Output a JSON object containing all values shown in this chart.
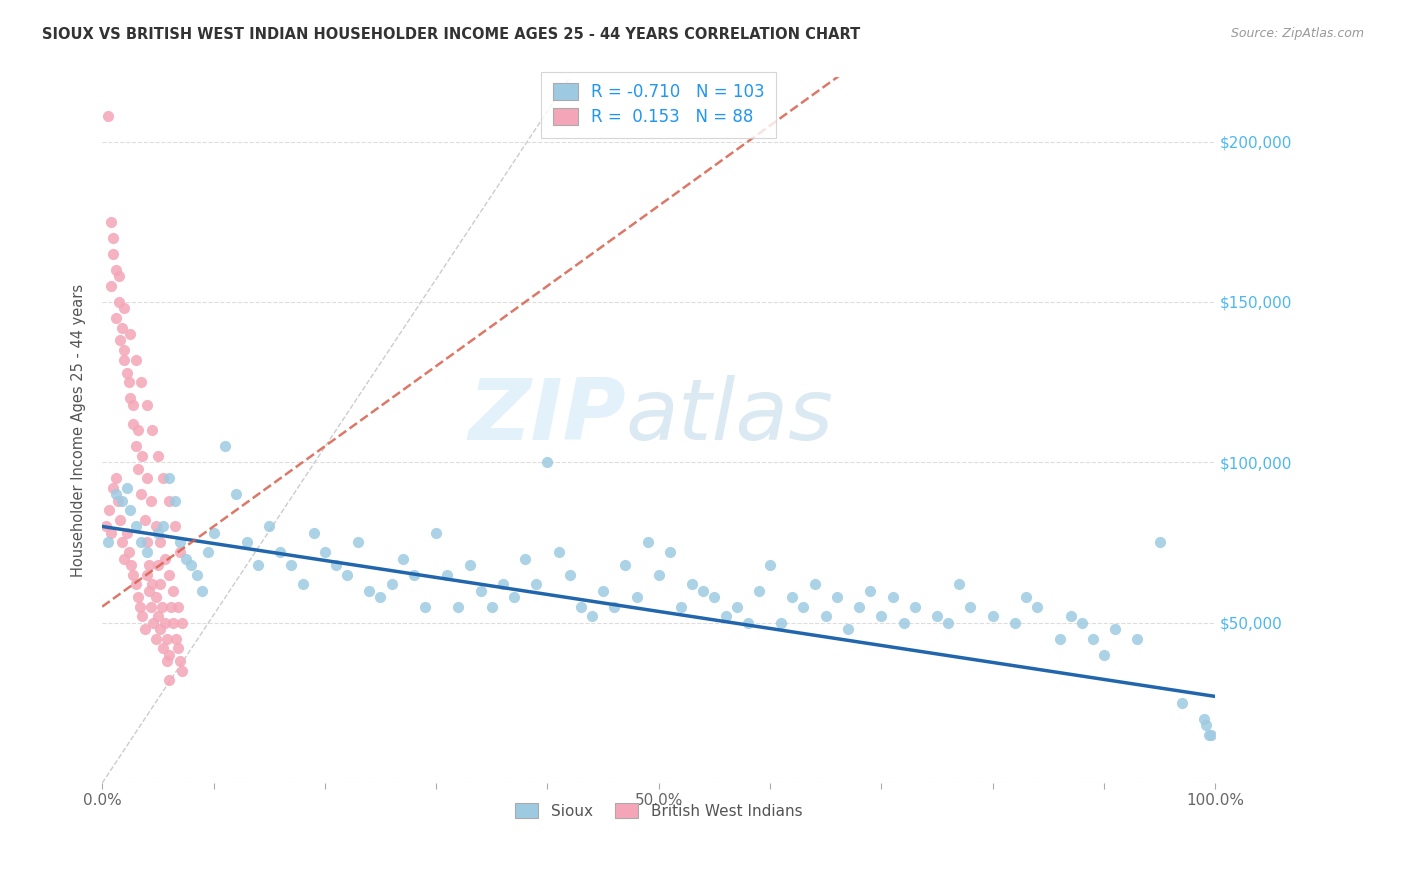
{
  "title": "SIOUX VS BRITISH WEST INDIAN HOUSEHOLDER INCOME AGES 25 - 44 YEARS CORRELATION CHART",
  "source": "Source: ZipAtlas.com",
  "ylabel": "Householder Income Ages 25 - 44 years",
  "xlim": [
    0.0,
    1.0
  ],
  "ylim": [
    0,
    220000
  ],
  "yticks": [
    0,
    50000,
    100000,
    150000,
    200000
  ],
  "ytick_labels": [
    "",
    "$50,000",
    "$100,000",
    "$150,000",
    "$200,000"
  ],
  "xtick_positions": [
    0.0,
    0.1,
    0.2,
    0.3,
    0.4,
    0.5,
    0.6,
    0.7,
    0.8,
    0.9,
    1.0
  ],
  "xtick_labels": [
    "0.0%",
    "",
    "",
    "",
    "",
    "50.0%",
    "",
    "",
    "",
    "",
    "100.0%"
  ],
  "sioux_color": "#9ecae1",
  "bwi_color": "#f4a6b8",
  "sioux_R": -0.71,
  "sioux_N": 103,
  "bwi_R": 0.153,
  "bwi_N": 88,
  "trend_sioux_color": "#2166ac",
  "trend_bwi_color": "#d6604d",
  "watermark_zip": "ZIP",
  "watermark_atlas": "atlas",
  "background_color": "#ffffff",
  "sioux_trend_x0": 0.0,
  "sioux_trend_y0": 80000,
  "sioux_trend_x1": 1.0,
  "sioux_trend_y1": 27000,
  "bwi_trend_x0": 0.0,
  "bwi_trend_y0": 55000,
  "bwi_trend_x1": 0.12,
  "bwi_trend_y1": 85000,
  "sioux_x": [
    0.005,
    0.012,
    0.018,
    0.022,
    0.025,
    0.03,
    0.035,
    0.04,
    0.05,
    0.055,
    0.06,
    0.065,
    0.07,
    0.075,
    0.08,
    0.085,
    0.09,
    0.095,
    0.1,
    0.11,
    0.12,
    0.13,
    0.14,
    0.15,
    0.16,
    0.17,
    0.18,
    0.19,
    0.2,
    0.21,
    0.22,
    0.23,
    0.24,
    0.25,
    0.26,
    0.27,
    0.28,
    0.29,
    0.3,
    0.31,
    0.32,
    0.33,
    0.34,
    0.35,
    0.36,
    0.37,
    0.38,
    0.39,
    0.4,
    0.41,
    0.42,
    0.43,
    0.44,
    0.45,
    0.46,
    0.47,
    0.48,
    0.49,
    0.5,
    0.51,
    0.52,
    0.53,
    0.54,
    0.55,
    0.56,
    0.57,
    0.58,
    0.59,
    0.6,
    0.61,
    0.62,
    0.63,
    0.64,
    0.65,
    0.66,
    0.67,
    0.68,
    0.69,
    0.7,
    0.71,
    0.72,
    0.73,
    0.75,
    0.76,
    0.77,
    0.78,
    0.8,
    0.82,
    0.83,
    0.84,
    0.86,
    0.87,
    0.88,
    0.89,
    0.9,
    0.91,
    0.93,
    0.95,
    0.97,
    0.99,
    0.992,
    0.994,
    0.996
  ],
  "sioux_y": [
    75000,
    90000,
    88000,
    92000,
    85000,
    80000,
    75000,
    72000,
    78000,
    80000,
    95000,
    88000,
    75000,
    70000,
    68000,
    65000,
    60000,
    72000,
    78000,
    105000,
    90000,
    75000,
    68000,
    80000,
    72000,
    68000,
    62000,
    78000,
    72000,
    68000,
    65000,
    75000,
    60000,
    58000,
    62000,
    70000,
    65000,
    55000,
    78000,
    65000,
    55000,
    68000,
    60000,
    55000,
    62000,
    58000,
    70000,
    62000,
    100000,
    72000,
    65000,
    55000,
    52000,
    60000,
    55000,
    68000,
    58000,
    75000,
    65000,
    72000,
    55000,
    62000,
    60000,
    58000,
    52000,
    55000,
    50000,
    60000,
    68000,
    50000,
    58000,
    55000,
    62000,
    52000,
    58000,
    48000,
    55000,
    60000,
    52000,
    58000,
    50000,
    55000,
    52000,
    50000,
    62000,
    55000,
    52000,
    50000,
    58000,
    55000,
    45000,
    52000,
    50000,
    45000,
    40000,
    48000,
    45000,
    75000,
    25000,
    20000,
    18000,
    15000,
    15000
  ],
  "bwi_x": [
    0.003,
    0.006,
    0.008,
    0.01,
    0.012,
    0.014,
    0.016,
    0.018,
    0.02,
    0.022,
    0.024,
    0.026,
    0.028,
    0.03,
    0.032,
    0.034,
    0.036,
    0.038,
    0.04,
    0.042,
    0.044,
    0.046,
    0.048,
    0.05,
    0.052,
    0.054,
    0.056,
    0.058,
    0.06,
    0.062,
    0.064,
    0.066,
    0.068,
    0.07,
    0.072,
    0.008,
    0.012,
    0.016,
    0.02,
    0.024,
    0.028,
    0.032,
    0.036,
    0.04,
    0.044,
    0.048,
    0.052,
    0.056,
    0.06,
    0.064,
    0.068,
    0.072,
    0.01,
    0.015,
    0.02,
    0.025,
    0.03,
    0.035,
    0.04,
    0.045,
    0.05,
    0.055,
    0.06,
    0.065,
    0.07,
    0.005,
    0.008,
    0.01,
    0.012,
    0.015,
    0.018,
    0.02,
    0.022,
    0.025,
    0.028,
    0.03,
    0.032,
    0.035,
    0.038,
    0.04,
    0.042,
    0.045,
    0.048,
    0.05,
    0.052,
    0.055,
    0.058,
    0.06
  ],
  "bwi_y": [
    80000,
    85000,
    78000,
    92000,
    95000,
    88000,
    82000,
    75000,
    70000,
    78000,
    72000,
    68000,
    65000,
    62000,
    58000,
    55000,
    52000,
    48000,
    65000,
    60000,
    55000,
    50000,
    45000,
    68000,
    62000,
    55000,
    50000,
    45000,
    40000,
    55000,
    50000,
    45000,
    42000,
    38000,
    35000,
    155000,
    145000,
    138000,
    132000,
    125000,
    118000,
    110000,
    102000,
    95000,
    88000,
    80000,
    75000,
    70000,
    65000,
    60000,
    55000,
    50000,
    165000,
    158000,
    148000,
    140000,
    132000,
    125000,
    118000,
    110000,
    102000,
    95000,
    88000,
    80000,
    72000,
    208000,
    175000,
    170000,
    160000,
    150000,
    142000,
    135000,
    128000,
    120000,
    112000,
    105000,
    98000,
    90000,
    82000,
    75000,
    68000,
    62000,
    58000,
    52000,
    48000,
    42000,
    38000,
    32000
  ]
}
